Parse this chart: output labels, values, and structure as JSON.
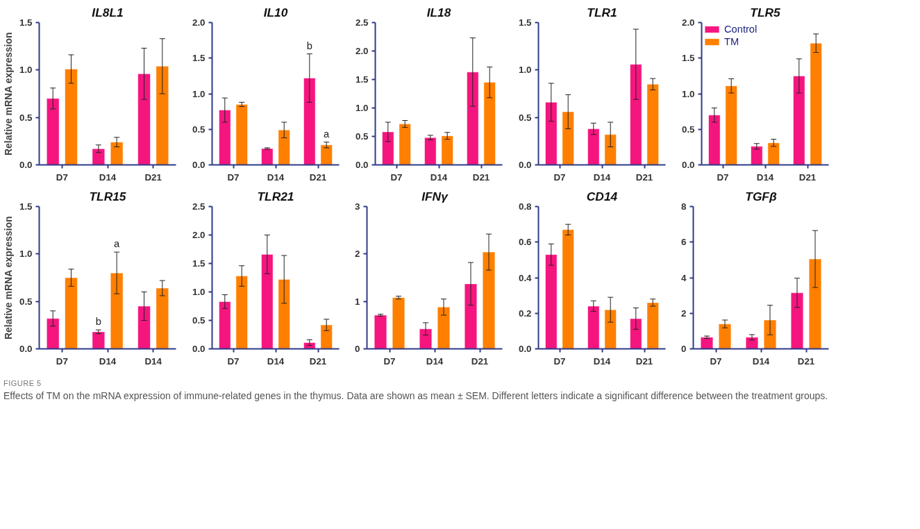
{
  "chart_data": [
    {
      "type": "bar",
      "title": "IL8L1",
      "ylabel": "Relative mRNA expression",
      "categories": [
        "D7",
        "D14",
        "D21"
      ],
      "ylim": [
        0,
        1.5
      ],
      "yticks": [
        {
          "value": 0,
          "label": "0.0"
        },
        {
          "value": 0.5,
          "label": "0.5"
        },
        {
          "value": 1,
          "label": "1.0"
        },
        {
          "value": 1.5,
          "label": "1.5"
        }
      ],
      "series": [
        {
          "color": "#f5157f",
          "values": [
            0.7,
            0.17,
            0.96
          ],
          "errors": [
            0.11,
            0.04,
            0.27
          ]
        },
        {
          "color": "#ff7f00",
          "values": [
            1.01,
            0.24,
            1.04
          ],
          "errors": [
            0.15,
            0.05,
            0.29
          ]
        }
      ]
    },
    {
      "type": "bar",
      "title": "IL10",
      "categories": [
        "D7",
        "D14",
        "D21"
      ],
      "ylim": [
        0,
        2
      ],
      "yticks": [
        {
          "value": 0,
          "label": "0.0"
        },
        {
          "value": 0.5,
          "label": "0.5"
        },
        {
          "value": 1,
          "label": "1.0"
        },
        {
          "value": 1.5,
          "label": "1.5"
        },
        {
          "value": 2,
          "label": "2.0"
        }
      ],
      "series": [
        {
          "color": "#f5157f",
          "values": [
            0.77,
            0.23,
            1.22
          ],
          "errors": [
            0.17,
            0.01,
            0.34
          ]
        },
        {
          "color": "#ff7f00",
          "values": [
            0.85,
            0.49,
            0.28
          ],
          "errors": [
            0.03,
            0.11,
            0.04
          ]
        }
      ],
      "annotations": [
        {
          "text": "b",
          "x": "D21",
          "y": 1.22
        },
        {
          "text": "a",
          "x": "D21",
          "y": 0.28
        }
      ]
    },
    {
      "type": "bar",
      "title": "IL18",
      "categories": [
        "D7",
        "D14",
        "D21"
      ],
      "ylim": [
        0,
        2.5
      ],
      "yticks": [
        {
          "value": 0,
          "label": "0.0"
        },
        {
          "value": 0.5,
          "label": "0.5"
        },
        {
          "value": 1,
          "label": "1.0"
        },
        {
          "value": 1.5,
          "label": "1.5"
        },
        {
          "value": 2,
          "label": "2.0"
        },
        {
          "value": 2.5,
          "label": "2.5"
        }
      ],
      "series": [
        {
          "color": "#f5157f",
          "values": [
            0.58,
            0.48,
            1.63
          ],
          "errors": [
            0.17,
            0.04,
            0.6
          ]
        },
        {
          "color": "#ff7f00",
          "values": [
            0.72,
            0.51,
            1.45
          ],
          "errors": [
            0.06,
            0.06,
            0.27
          ]
        }
      ]
    },
    {
      "type": "bar",
      "title": "TLR1",
      "categories": [
        "D7",
        "D14",
        "D21"
      ],
      "ylim": [
        0,
        1.5
      ],
      "yticks": [
        {
          "value": 0,
          "label": "0.0"
        },
        {
          "value": 0.5,
          "label": "0.5"
        },
        {
          "value": 1,
          "label": "1.0"
        },
        {
          "value": 1.5,
          "label": "1.5"
        }
      ],
      "series": [
        {
          "color": "#f5157f",
          "values": [
            0.66,
            0.38,
            1.06
          ],
          "errors": [
            0.2,
            0.06,
            0.37
          ]
        },
        {
          "color": "#ff7f00",
          "values": [
            0.56,
            0.32,
            0.85
          ],
          "errors": [
            0.18,
            0.13,
            0.06
          ]
        }
      ]
    },
    {
      "type": "bar",
      "title": "TLR5",
      "legend": "top left",
      "categories": [
        "D7",
        "D14",
        "D21"
      ],
      "ylim": [
        0,
        2
      ],
      "yticks": [
        {
          "value": 0,
          "label": "0.0"
        },
        {
          "value": 0.5,
          "label": "0.5"
        },
        {
          "value": 1,
          "label": "1.0"
        },
        {
          "value": 1.5,
          "label": "1.5"
        },
        {
          "value": 2,
          "label": "2.0"
        }
      ],
      "series": [
        {
          "name": "Control",
          "color": "#f5157f",
          "values": [
            0.7,
            0.26,
            1.25
          ],
          "errors": [
            0.1,
            0.04,
            0.24
          ]
        },
        {
          "name": "TM",
          "color": "#ff7f00",
          "values": [
            1.11,
            0.31,
            1.71
          ],
          "errors": [
            0.1,
            0.05,
            0.13
          ]
        }
      ]
    },
    {
      "type": "bar",
      "title": "TLR15",
      "ylabel": "Relative mRNA expression",
      "categories": [
        "D7",
        "D14",
        "D14"
      ],
      "ylim": [
        0,
        1.5
      ],
      "yticks": [
        {
          "value": 0,
          "label": "0.0"
        },
        {
          "value": 0.5,
          "label": "0.5"
        },
        {
          "value": 1,
          "label": "1.0"
        },
        {
          "value": 1.5,
          "label": "1.5"
        }
      ],
      "series": [
        {
          "color": "#f5157f",
          "values": [
            0.32,
            0.18,
            0.45
          ],
          "errors": [
            0.08,
            0.02,
            0.15
          ]
        },
        {
          "color": "#ff7f00",
          "values": [
            0.75,
            0.8,
            0.64
          ],
          "errors": [
            0.09,
            0.22,
            0.08
          ]
        }
      ],
      "annotations": [
        {
          "text": "b",
          "x": "D14",
          "y": 0.18
        },
        {
          "text": "a",
          "x": "D14",
          "y": 0.8
        }
      ]
    },
    {
      "type": "bar",
      "title": "TLR21",
      "categories": [
        "D7",
        "D14",
        "D21"
      ],
      "ylim": [
        0,
        2.5
      ],
      "yticks": [
        {
          "value": 0,
          "label": "0.0"
        },
        {
          "value": 0.5,
          "label": "0.5"
        },
        {
          "value": 1,
          "label": "1.0"
        },
        {
          "value": 1.5,
          "label": "1.5"
        },
        {
          "value": 2,
          "label": "2.0"
        },
        {
          "value": 2.5,
          "label": "2.5"
        }
      ],
      "series": [
        {
          "color": "#f5157f",
          "values": [
            0.83,
            1.66,
            0.11
          ],
          "errors": [
            0.12,
            0.34,
            0.05
          ]
        },
        {
          "color": "#ff7f00",
          "values": [
            1.28,
            1.22,
            0.42
          ],
          "errors": [
            0.18,
            0.42,
            0.1
          ]
        }
      ]
    },
    {
      "type": "bar",
      "title": "IFNγ",
      "categories": [
        "D7",
        "D14",
        "D21"
      ],
      "ylim": [
        0,
        3
      ],
      "yticks": [
        0,
        1,
        2,
        3
      ],
      "series": [
        {
          "color": "#f5157f",
          "values": [
            0.71,
            0.42,
            1.37
          ],
          "errors": [
            0.02,
            0.13,
            0.45
          ]
        },
        {
          "color": "#ff7f00",
          "values": [
            1.08,
            0.88,
            2.04
          ],
          "errors": [
            0.03,
            0.17,
            0.38
          ]
        }
      ]
    },
    {
      "type": "bar",
      "title": "CD14",
      "categories": [
        "D7",
        "D14",
        "D21"
      ],
      "ylim": [
        0,
        0.8
      ],
      "yticks": [
        {
          "value": 0,
          "label": "0.0"
        },
        {
          "value": 0.2,
          "label": "0.2"
        },
        {
          "value": 0.4,
          "label": "0.4"
        },
        {
          "value": 0.6,
          "label": "0.6"
        },
        {
          "value": 0.8,
          "label": "0.8"
        }
      ],
      "series": [
        {
          "color": "#f5157f",
          "values": [
            0.53,
            0.24,
            0.17
          ],
          "errors": [
            0.06,
            0.03,
            0.06
          ]
        },
        {
          "color": "#ff7f00",
          "values": [
            0.67,
            0.22,
            0.26
          ],
          "errors": [
            0.03,
            0.07,
            0.02
          ]
        }
      ]
    },
    {
      "type": "bar",
      "title": "TGFβ",
      "categories": [
        "D7",
        "D14",
        "D21"
      ],
      "ylim": [
        0,
        8
      ],
      "yticks": [
        0,
        2,
        4,
        6,
        8
      ],
      "series": [
        {
          "color": "#f5157f",
          "values": [
            0.65,
            0.65,
            3.15
          ],
          "errors": [
            0.07,
            0.15,
            0.82
          ]
        },
        {
          "color": "#ff7f00",
          "values": [
            1.4,
            1.62,
            5.05
          ],
          "errors": [
            0.22,
            0.83,
            1.6
          ]
        }
      ],
      "annotations": [
        "FIGURE 5",
        "Effects of TM on the mRNA expression of immune-related genes in the thymus. Data are shown as mean ± SEM. Different letters indicate a significant difference between the treatment groups."
      ]
    }
  ]
}
